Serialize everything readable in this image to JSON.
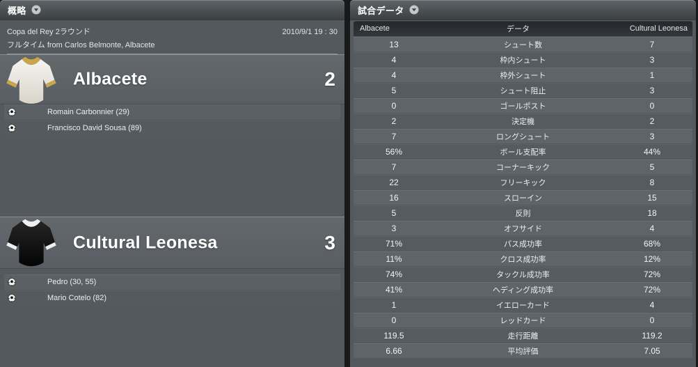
{
  "overview": {
    "title": "概略",
    "competition": "Copa del Rey 2ラウンド",
    "datetime": "2010/9/1 19 : 30",
    "status_line": "フルタイム from Carlos Belmonte, Albacete",
    "teams": [
      {
        "name": "Albacete",
        "score": "2",
        "shirt_body": "#f6f4ef",
        "shirt_body_shade": "#d8d4ca",
        "shirt_trim": "#c9a64a",
        "scorers": [
          "Romain Carbonnier (29)",
          "Francisco David Sousa (89)"
        ]
      },
      {
        "name": "Cultural Leonesa",
        "score": "3",
        "shirt_body": "#242424",
        "shirt_body_shade": "#050505",
        "shirt_trim": "#efefef",
        "scorers": [
          "Pedro (30, 55)",
          "Mario Cotelo (82)"
        ]
      }
    ]
  },
  "match_stats": {
    "title": "試合データ",
    "columns": {
      "home": "Albacete",
      "center": "データ",
      "away": "Cultural Leonesa"
    },
    "rows": [
      {
        "home": "13",
        "label": "シュート数",
        "away": "7"
      },
      {
        "home": "4",
        "label": "枠内シュート",
        "away": "3"
      },
      {
        "home": "4",
        "label": "枠外シュート",
        "away": "1"
      },
      {
        "home": "5",
        "label": "シュート阻止",
        "away": "3"
      },
      {
        "home": "0",
        "label": "ゴールポスト",
        "away": "0"
      },
      {
        "home": "2",
        "label": "決定機",
        "away": "2"
      },
      {
        "home": "7",
        "label": "ロングシュート",
        "away": "3"
      },
      {
        "home": "56%",
        "label": "ボール支配率",
        "away": "44%"
      },
      {
        "home": "7",
        "label": "コーナーキック",
        "away": "5"
      },
      {
        "home": "22",
        "label": "フリーキック",
        "away": "8"
      },
      {
        "home": "16",
        "label": "スローイン",
        "away": "15"
      },
      {
        "home": "5",
        "label": "反則",
        "away": "18"
      },
      {
        "home": "3",
        "label": "オフサイド",
        "away": "4"
      },
      {
        "home": "71%",
        "label": "パス成功率",
        "away": "68%"
      },
      {
        "home": "11%",
        "label": "クロス成功率",
        "away": "12%"
      },
      {
        "home": "74%",
        "label": "タックル成功率",
        "away": "72%"
      },
      {
        "home": "41%",
        "label": "ヘディング成功率",
        "away": "72%"
      },
      {
        "home": "1",
        "label": "イエローカード",
        "away": "4"
      },
      {
        "home": "0",
        "label": "レッドカード",
        "away": "0"
      },
      {
        "home": "119.5",
        "label": "走行距離",
        "away": "119.2"
      },
      {
        "home": "6.66",
        "label": "平均評価",
        "away": "7.05"
      }
    ]
  },
  "icons": {
    "header_dropdown": "chevron-down",
    "goal_marker": "soccer-ball"
  },
  "colors": {
    "panel_background": "#54595d",
    "panel_gap": "#17191b",
    "row_light": "#5e646a",
    "row_dark": "#565b61",
    "table_header_background": "#2b2f33",
    "text_primary": "#ffffff",
    "text_secondary": "#e3e5e6"
  }
}
